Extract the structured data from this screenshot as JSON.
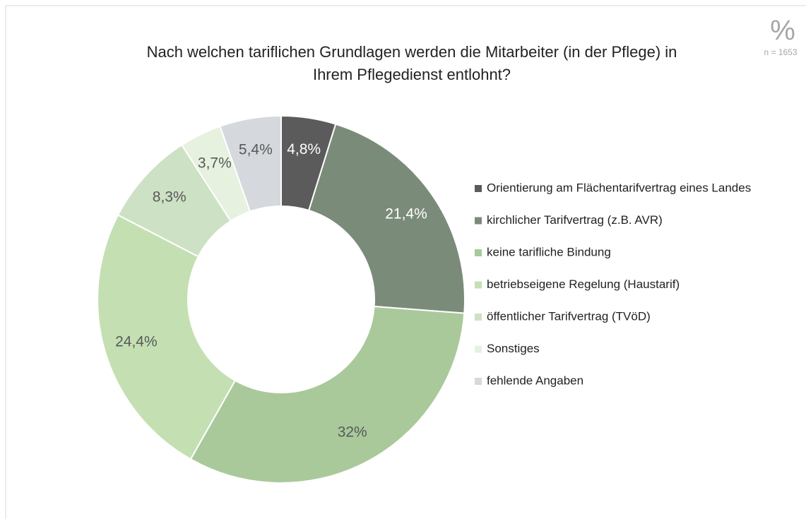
{
  "chart_data": {
    "type": "donut",
    "title": [
      "Nach welchen tariflichen Grundlagen werden die Mitarbeiter (in der Pflege) in",
      "Ihrem Pflegedienst entlohnt?"
    ],
    "unit_symbol": "%",
    "note": "n = 1653",
    "categories": [
      "Orientierung am Flächentarifvertrag eines Landes",
      "kirchlicher Tarifvertrag (z.B. AVR)",
      "keine tarifliche Bindung",
      "betriebseigene Regelung (Haustarif)",
      "öffentlicher Tarifvertrag (TVöD)",
      "Sonstiges",
      "fehlende Angaben"
    ],
    "values": [
      4.8,
      21.4,
      32,
      24.4,
      8.3,
      3.7,
      5.4
    ],
    "value_labels": [
      "4,8%",
      "21,4%",
      "32%",
      "24,4%",
      "8,3%",
      "3,7%",
      "5,4%"
    ],
    "colors": [
      "#5b5b5b",
      "#7b8b79",
      "#a9c99b",
      "#c4e0b3",
      "#cde1c4",
      "#e6f1df",
      "#d5d8dd"
    ],
    "legend": "right"
  }
}
